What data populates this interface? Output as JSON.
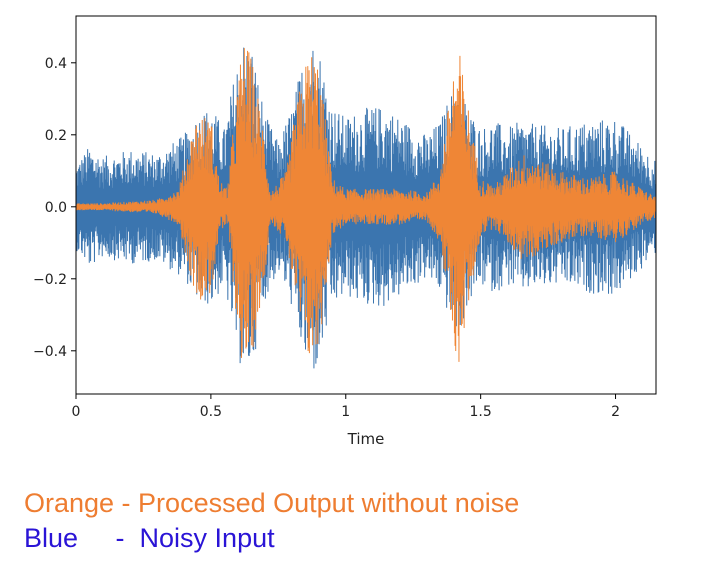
{
  "chart_data": {
    "type": "line",
    "title": "",
    "xlabel": "Time",
    "ylabel": "",
    "xlim": [
      0,
      2.15
    ],
    "ylim": [
      -0.52,
      0.53
    ],
    "xticks": [
      0,
      0.5,
      1,
      1.5,
      2
    ],
    "xtick_labels": [
      "0",
      "0.5",
      "1",
      "1.5",
      "2"
    ],
    "yticks": [
      0.4,
      0.2,
      0.0,
      -0.2,
      -0.4
    ],
    "ytick_labels": [
      "0.4",
      "0.2",
      "0.0",
      "−0.2",
      "−0.4"
    ],
    "grid": false,
    "legend": "none",
    "series": [
      {
        "color": "#3b75af",
        "envelope_time": [
          0,
          0.05,
          0.1,
          0.2,
          0.3,
          0.4,
          0.45,
          0.5,
          0.55,
          0.6,
          0.62,
          0.65,
          0.7,
          0.75,
          0.8,
          0.85,
          0.88,
          0.9,
          0.95,
          1.0,
          1.05,
          1.1,
          1.15,
          1.2,
          1.3,
          1.35,
          1.4,
          1.42,
          1.45,
          1.5,
          1.55,
          1.6,
          1.65,
          1.7,
          1.8,
          1.9,
          2.0,
          2.1,
          2.15
        ],
        "envelope_amplitude": [
          0.12,
          0.17,
          0.14,
          0.16,
          0.15,
          0.2,
          0.26,
          0.28,
          0.22,
          0.42,
          0.47,
          0.46,
          0.26,
          0.18,
          0.28,
          0.44,
          0.47,
          0.45,
          0.28,
          0.25,
          0.27,
          0.28,
          0.28,
          0.25,
          0.2,
          0.24,
          0.34,
          0.36,
          0.28,
          0.22,
          0.24,
          0.22,
          0.24,
          0.23,
          0.22,
          0.24,
          0.25,
          0.17,
          0.13
        ]
      },
      {
        "color": "#ef8636",
        "envelope_time": [
          0,
          0.1,
          0.2,
          0.3,
          0.38,
          0.42,
          0.45,
          0.5,
          0.53,
          0.56,
          0.6,
          0.62,
          0.65,
          0.7,
          0.72,
          0.78,
          0.82,
          0.86,
          0.88,
          0.9,
          0.95,
          1.0,
          1.1,
          1.2,
          1.3,
          1.35,
          1.4,
          1.42,
          1.45,
          1.5,
          1.55,
          1.6,
          1.65,
          1.7,
          1.8,
          1.9,
          2.0,
          2.1,
          2.15
        ],
        "envelope_amplitude": [
          0.01,
          0.01,
          0.015,
          0.02,
          0.05,
          0.18,
          0.26,
          0.25,
          0.08,
          0.05,
          0.35,
          0.47,
          0.42,
          0.2,
          0.04,
          0.1,
          0.3,
          0.43,
          0.44,
          0.4,
          0.08,
          0.05,
          0.05,
          0.05,
          0.04,
          0.1,
          0.4,
          0.44,
          0.3,
          0.08,
          0.06,
          0.1,
          0.15,
          0.14,
          0.1,
          0.08,
          0.1,
          0.05,
          0.03
        ]
      }
    ]
  },
  "captions": {
    "orange": "Orange - Processed Output without noise",
    "blue": "Blue     -  Noisy Input"
  }
}
